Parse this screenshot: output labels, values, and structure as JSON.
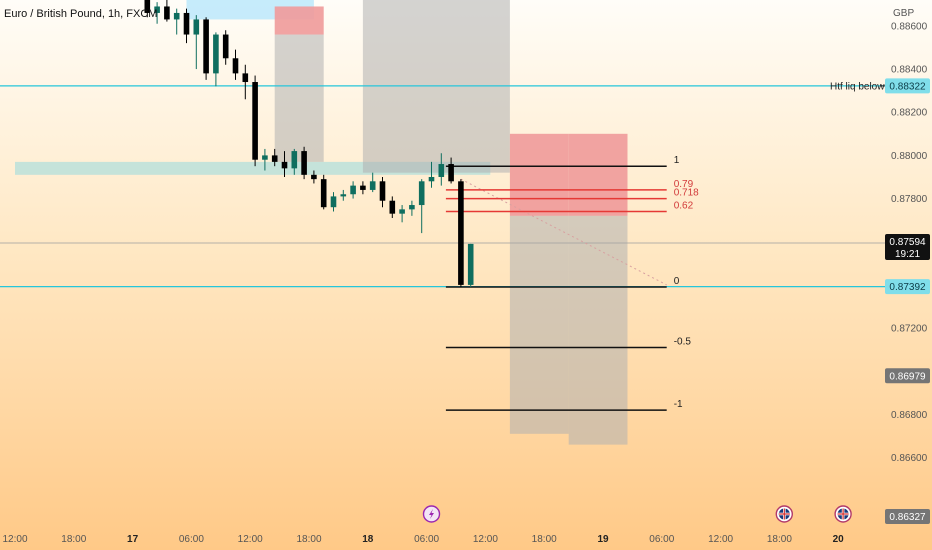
{
  "chart_data": {
    "type": "candlestick",
    "title": "Euro / British Pound, 1h, FXCM",
    "currency": "GBP",
    "ylim": [
      0.8632,
      0.8872
    ],
    "y_ticks": [
      "0.88600",
      "0.88400",
      "0.88200",
      "0.88000",
      "0.87800",
      "0.87200",
      "0.86800",
      "0.86600"
    ],
    "y_tick_values": [
      0.886,
      0.884,
      0.882,
      0.88,
      0.878,
      0.872,
      0.868,
      0.866
    ],
    "x_ticks": [
      "12:00",
      "18:00",
      "17",
      "06:00",
      "12:00",
      "18:00",
      "18",
      "06:00",
      "12:00",
      "18:00",
      "19",
      "06:00",
      "12:00",
      "18:00",
      "20"
    ],
    "x_tick_bold": [
      false,
      false,
      true,
      false,
      false,
      false,
      true,
      false,
      false,
      false,
      true,
      false,
      false,
      false,
      true
    ],
    "x_tick_hours": [
      0,
      6,
      12,
      18,
      24,
      30,
      36,
      42,
      48,
      54,
      60,
      66,
      72,
      78,
      84
    ],
    "candles": [
      {
        "t": 13.5,
        "o": 0.8872,
        "h": 0.8876,
        "l": 0.8864,
        "c": 0.8866
      },
      {
        "t": 14.5,
        "o": 0.8866,
        "h": 0.8871,
        "l": 0.8861,
        "c": 0.8869
      },
      {
        "t": 15.5,
        "o": 0.8869,
        "h": 0.8872,
        "l": 0.8862,
        "c": 0.8863
      },
      {
        "t": 16.5,
        "o": 0.8863,
        "h": 0.8868,
        "l": 0.8856,
        "c": 0.8866
      },
      {
        "t": 17.5,
        "o": 0.8866,
        "h": 0.8868,
        "l": 0.8852,
        "c": 0.8856
      },
      {
        "t": 18.5,
        "o": 0.8856,
        "h": 0.8865,
        "l": 0.884,
        "c": 0.8863
      },
      {
        "t": 19.5,
        "o": 0.8863,
        "h": 0.8864,
        "l": 0.8835,
        "c": 0.8838
      },
      {
        "t": 20.5,
        "o": 0.8838,
        "h": 0.8857,
        "l": 0.8832,
        "c": 0.8856
      },
      {
        "t": 21.5,
        "o": 0.8856,
        "h": 0.8858,
        "l": 0.8842,
        "c": 0.8845
      },
      {
        "t": 22.5,
        "o": 0.8845,
        "h": 0.8849,
        "l": 0.8835,
        "c": 0.8838
      },
      {
        "t": 23.5,
        "o": 0.8838,
        "h": 0.8842,
        "l": 0.8826,
        "c": 0.8834
      },
      {
        "t": 24.5,
        "o": 0.8834,
        "h": 0.8837,
        "l": 0.8795,
        "c": 0.8798
      },
      {
        "t": 25.5,
        "o": 0.8798,
        "h": 0.8803,
        "l": 0.8793,
        "c": 0.88
      },
      {
        "t": 26.5,
        "o": 0.88,
        "h": 0.8803,
        "l": 0.8795,
        "c": 0.8797
      },
      {
        "t": 27.5,
        "o": 0.8797,
        "h": 0.8802,
        "l": 0.879,
        "c": 0.8794
      },
      {
        "t": 28.5,
        "o": 0.8794,
        "h": 0.8803,
        "l": 0.8791,
        "c": 0.8802
      },
      {
        "t": 29.5,
        "o": 0.8802,
        "h": 0.8804,
        "l": 0.8789,
        "c": 0.8791
      },
      {
        "t": 30.5,
        "o": 0.8791,
        "h": 0.8793,
        "l": 0.8787,
        "c": 0.8789
      },
      {
        "t": 31.5,
        "o": 0.8789,
        "h": 0.8791,
        "l": 0.8775,
        "c": 0.8776
      },
      {
        "t": 32.5,
        "o": 0.8776,
        "h": 0.8783,
        "l": 0.8774,
        "c": 0.8781
      },
      {
        "t": 33.5,
        "o": 0.8781,
        "h": 0.8784,
        "l": 0.8779,
        "c": 0.8782
      },
      {
        "t": 34.5,
        "o": 0.8782,
        "h": 0.8788,
        "l": 0.878,
        "c": 0.8786
      },
      {
        "t": 35.5,
        "o": 0.8786,
        "h": 0.8788,
        "l": 0.8782,
        "c": 0.8784
      },
      {
        "t": 36.5,
        "o": 0.8784,
        "h": 0.8792,
        "l": 0.8783,
        "c": 0.8788
      },
      {
        "t": 37.5,
        "o": 0.8788,
        "h": 0.879,
        "l": 0.8776,
        "c": 0.8779
      },
      {
        "t": 38.5,
        "o": 0.8779,
        "h": 0.8781,
        "l": 0.8771,
        "c": 0.8773
      },
      {
        "t": 39.5,
        "o": 0.8773,
        "h": 0.8777,
        "l": 0.8769,
        "c": 0.8775
      },
      {
        "t": 40.5,
        "o": 0.8775,
        "h": 0.8779,
        "l": 0.8772,
        "c": 0.8777
      },
      {
        "t": 41.5,
        "o": 0.8777,
        "h": 0.8789,
        "l": 0.8764,
        "c": 0.8788
      },
      {
        "t": 42.5,
        "o": 0.8788,
        "h": 0.8797,
        "l": 0.8785,
        "c": 0.879
      },
      {
        "t": 43.5,
        "o": 0.879,
        "h": 0.8801,
        "l": 0.8786,
        "c": 0.8796
      },
      {
        "t": 44.5,
        "o": 0.8796,
        "h": 0.8799,
        "l": 0.8787,
        "c": 0.8788
      },
      {
        "t": 45.5,
        "o": 0.8788,
        "h": 0.8789,
        "l": 0.8739,
        "c": 0.874
      },
      {
        "t": 46.5,
        "o": 0.874,
        "h": 0.8759,
        "l": 0.8739,
        "c": 0.8759
      }
    ],
    "horizontal_lines": [
      {
        "name": "htf-liquidity",
        "price": 0.88322,
        "label": "Htf liq below",
        "color": "#26c6da"
      },
      {
        "name": "support",
        "price": 0.87392,
        "label": "",
        "color": "#26c6da"
      },
      {
        "name": "current-price",
        "price": 0.87594,
        "label": "",
        "color": "#9e9e9e"
      }
    ],
    "fib": {
      "t_start": 45.5,
      "t_end": 66.5,
      "levels": [
        {
          "label": "1",
          "price": 0.8795,
          "color": "#111111"
        },
        {
          "label": "0.79",
          "price": 0.8784,
          "color": "#e53935"
        },
        {
          "label": "0.718",
          "price": 0.878,
          "color": "#e53935"
        },
        {
          "label": "0.62",
          "price": 0.8774,
          "color": "#e53935"
        },
        {
          "label": "0",
          "price": 0.8739,
          "color": "#111111"
        },
        {
          "label": "-0.5",
          "price": 0.8711,
          "color": "#111111"
        },
        {
          "label": "-1",
          "price": 0.8682,
          "color": "#111111"
        }
      ]
    },
    "zones": [
      {
        "name": "supply-zone-top",
        "t0": 17.5,
        "t1": 30.5,
        "p_top": 0.8873,
        "p_bot": 0.8863,
        "color": "#b3e5fc",
        "opacity": 0.75
      },
      {
        "name": "demand-zone-mid",
        "t0": 0,
        "t1": 48.5,
        "p_top": 0.8797,
        "p_bot": 0.8791,
        "color": "#b2dfdb",
        "opacity": 0.75
      },
      {
        "name": "position-box-1-stop",
        "t0": 26.5,
        "t1": 31.5,
        "p_top": 0.8869,
        "p_bot": 0.8856,
        "color": "#ef9a9a",
        "opacity": 0.9
      },
      {
        "name": "position-box-1-target",
        "t0": 26.5,
        "t1": 31.5,
        "p_top": 0.8856,
        "p_bot": 0.8797,
        "color": "#b0b0b0",
        "opacity": 0.55
      },
      {
        "name": "position-box-2-target",
        "t0": 35.5,
        "t1": 50.5,
        "p_top": 0.8872,
        "p_bot": 0.8792,
        "color": "#b0b0b0",
        "opacity": 0.55
      },
      {
        "name": "short-box-1-stop",
        "t0": 50.5,
        "t1": 56.5,
        "p_top": 0.881,
        "p_bot": 0.8772,
        "color": "#ef9a9a",
        "opacity": 0.9
      },
      {
        "name": "short-box-1-target",
        "t0": 50.5,
        "t1": 56.5,
        "p_top": 0.8772,
        "p_bot": 0.8671,
        "color": "#b0b0b0",
        "opacity": 0.55
      },
      {
        "name": "short-box-2-stop",
        "t0": 56.5,
        "t1": 62.5,
        "p_top": 0.881,
        "p_bot": 0.8772,
        "color": "#ef9a9a",
        "opacity": 0.9
      },
      {
        "name": "short-box-2-target",
        "t0": 56.5,
        "t1": 62.5,
        "p_top": 0.8772,
        "p_bot": 0.8666,
        "color": "#b0b0b0",
        "opacity": 0.55
      }
    ],
    "projection": {
      "t0": 45.5,
      "p0": 0.8789,
      "t1": 66.5,
      "p1": 0.874,
      "color": "#d8a0a0"
    },
    "price_tags": [
      {
        "name": "htf-liq-tag",
        "price": 0.88322,
        "text": "0.88322",
        "bg": "#80deea",
        "fg": "#0b3b46"
      },
      {
        "name": "current-price-tag",
        "price": 0.87594,
        "text": "0.87594",
        "sub": "19:21",
        "bg": "#111111",
        "fg": "#ffffff"
      },
      {
        "name": "support-tag",
        "price": 0.87392,
        "text": "0.87392",
        "bg": "#80deea",
        "fg": "#0b3b46"
      },
      {
        "name": "level-tag-mid",
        "price": 0.86979,
        "text": "0.86979",
        "bg": "#757575",
        "fg": "#ffffff"
      },
      {
        "name": "last-tag",
        "price": 0.86327,
        "text": "0.86327",
        "bg": "#757575",
        "fg": "#ffffff"
      }
    ],
    "events": [
      {
        "name": "lightning-event-icon",
        "t": 42.5,
        "kind": "lightning"
      },
      {
        "name": "uk-flag-event-icon-1",
        "t": 78.5,
        "kind": "flag"
      },
      {
        "name": "uk-flag-event-icon-2",
        "t": 84.5,
        "kind": "flag"
      }
    ],
    "colors": {
      "up": "#0f6e5f",
      "down": "#000000",
      "bg_top": "#fffdf8",
      "bg_bottom": "#ffc987"
    }
  }
}
